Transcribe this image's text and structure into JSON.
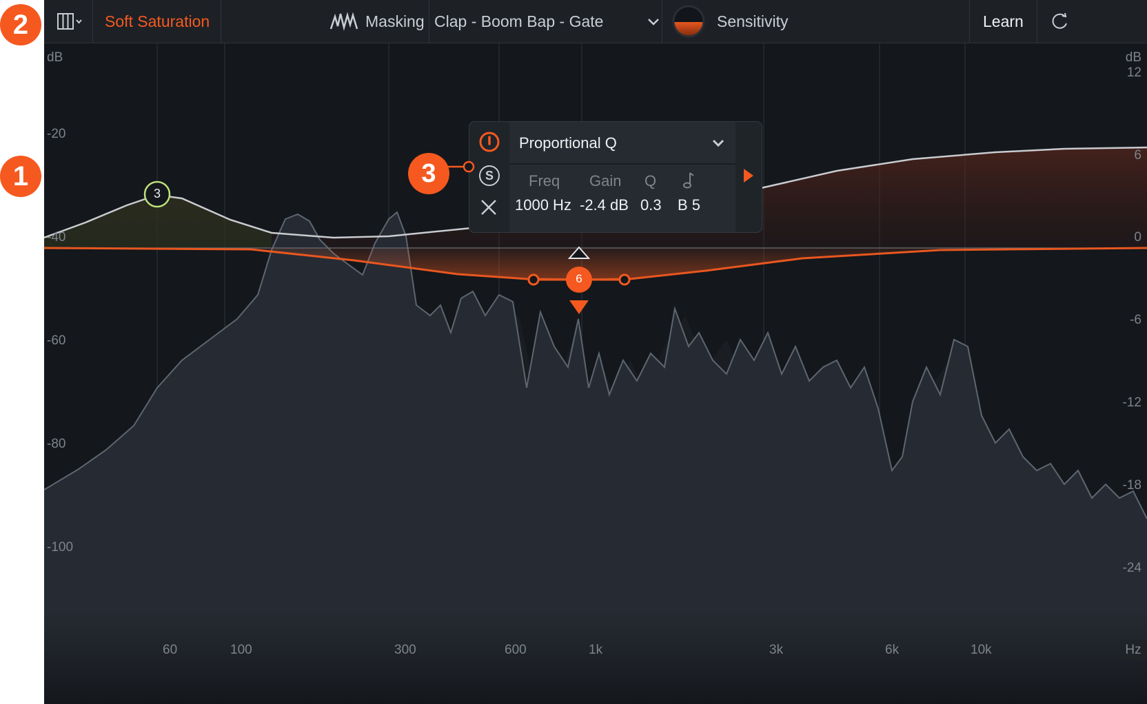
{
  "callouts": {
    "one": "1",
    "two": "2",
    "three": "3"
  },
  "toolbar": {
    "mode_label": "Soft Saturation",
    "masking_label": "Masking",
    "masking_preset": "Clap - Boom Bap - Gate",
    "sensitivity_label": "Sensitivity",
    "learn_label": "Learn"
  },
  "graph": {
    "left_axis_unit": "dB",
    "right_axis_unit": "dB",
    "x_axis_unit": "Hz",
    "left_ticks": [
      "-20",
      "-40",
      "-60",
      "-80",
      "-100"
    ],
    "right_ticks": [
      "12",
      "6",
      "0",
      "-6",
      "-12",
      "-18",
      "-24"
    ],
    "freq_ticks": [
      "60",
      "100",
      "300",
      "600",
      "1k",
      "3k",
      "6k",
      "10k"
    ],
    "node_3_label": "3",
    "node_6_label": "6"
  },
  "band_popup": {
    "shape": "Proportional Q",
    "headers": {
      "freq": "Freq",
      "gain": "Gain",
      "q": "Q"
    },
    "solo_label": "S",
    "freq_value": "1000 Hz",
    "gain_value": "-2.4 dB",
    "q_value": "0.3",
    "note_value": "B 5"
  },
  "icons": {
    "layout": "columns-icon",
    "masking": "waveform-icon",
    "sensitivity": "knob-icon",
    "reset": "refresh-icon",
    "power": "power-icon",
    "solo": "solo-icon",
    "delete": "close-icon",
    "note": "music-note-icon",
    "expand": "play-arrow-icon"
  },
  "colors": {
    "accent": "#f5591f",
    "node_green": "#bde27a",
    "background": "#14171b"
  }
}
